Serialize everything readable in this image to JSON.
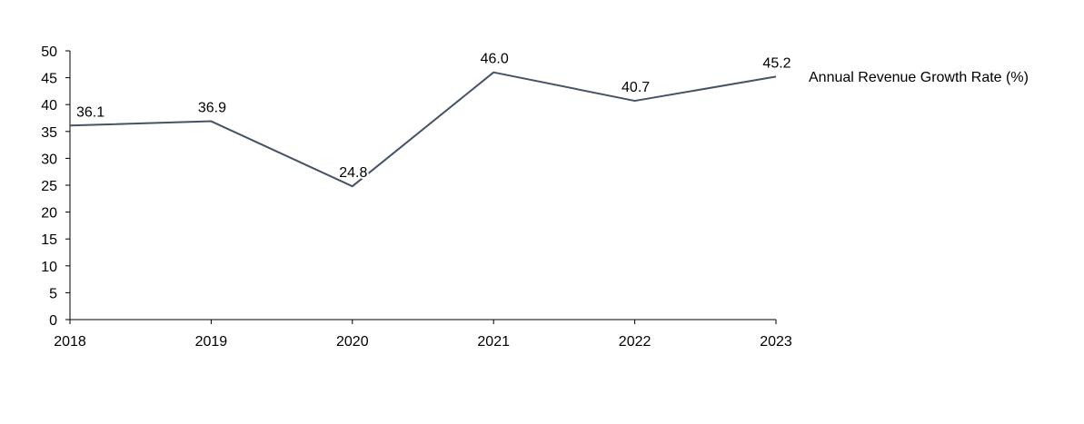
{
  "chart_data": {
    "type": "line",
    "title": "",
    "xlabel": "",
    "ylabel": "",
    "categories": [
      "2018",
      "2019",
      "2020",
      "2021",
      "2022",
      "2023"
    ],
    "series": [
      {
        "name": "Annual Revenue Growth Rate (%)",
        "values": [
          36.1,
          36.9,
          24.8,
          46.0,
          40.7,
          45.2
        ],
        "labels": [
          "36.1",
          "36.9",
          "24.8",
          "46.0",
          "40.7",
          "45.2"
        ],
        "color": "#455366"
      }
    ],
    "ylim": [
      0,
      50
    ],
    "yticks": [
      "0",
      "5",
      "10",
      "15",
      "20",
      "25",
      "30",
      "35",
      "40",
      "45",
      "50"
    ],
    "grid": false,
    "legend_position": "right"
  }
}
